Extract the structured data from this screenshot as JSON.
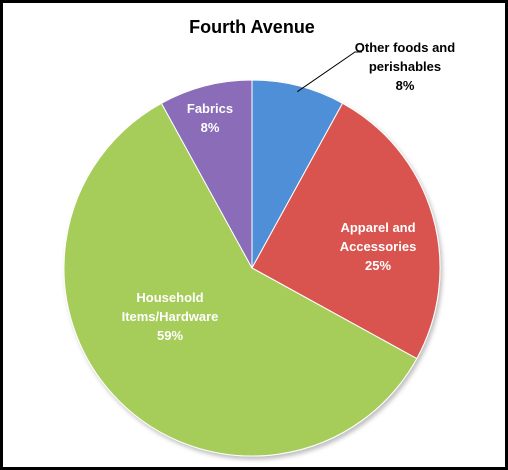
{
  "chart_data": {
    "type": "pie",
    "title": "Fourth Avenue",
    "slices": [
      {
        "name": "Other foods and perishables",
        "label_lines": [
          "Other foods and",
          "perishables"
        ],
        "pct_label": "8%",
        "value": 8,
        "color": "#4f8fd8",
        "label_color": "#000000"
      },
      {
        "name": "Apparel and Accessories",
        "label_lines": [
          "Apparel and",
          "Accessories"
        ],
        "pct_label": "25%",
        "value": 25,
        "color": "#d9534f",
        "label_color": "#ffffff"
      },
      {
        "name": "Household Items/Hardware",
        "label_lines": [
          "Household",
          "Items/Hardware"
        ],
        "pct_label": "59%",
        "value": 59,
        "color": "#a6cc5a",
        "label_color": "#ffffff"
      },
      {
        "name": "Fabrics",
        "label_lines": [
          "Fabrics"
        ],
        "pct_label": "8%",
        "value": 8,
        "color": "#8a6cb8",
        "label_color": "#ffffff"
      }
    ],
    "legend": "none",
    "start_angle": "12 o'clock",
    "direction": "clockwise"
  }
}
